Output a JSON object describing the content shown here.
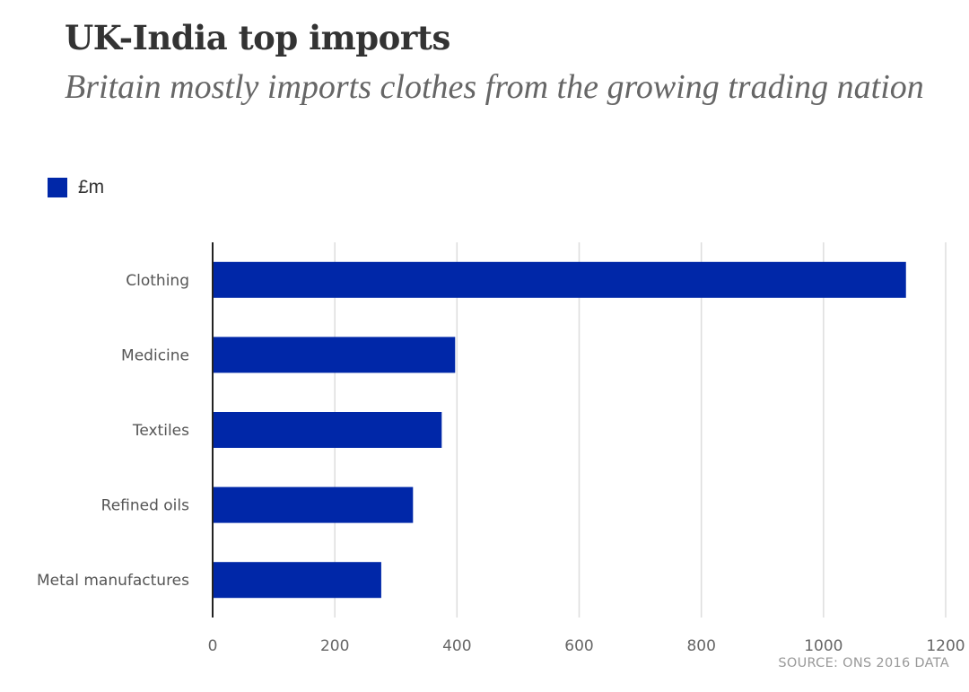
{
  "chart_data": {
    "type": "bar",
    "orientation": "horizontal",
    "title": "UK-India top imports",
    "subtitle": "Britain mostly imports clothes from the growing trading nation",
    "categories": [
      "Clothing",
      "Medicine",
      "Textiles",
      "Refined oils",
      "Metal manufactures"
    ],
    "series": [
      {
        "name": "£m",
        "values": [
          1135,
          397,
          375,
          328,
          276
        ]
      }
    ],
    "xlim": [
      0,
      1200
    ],
    "xticks": [
      0,
      200,
      400,
      600,
      800,
      1000,
      1200
    ],
    "xlabel": "",
    "ylabel": "",
    "grid": true,
    "legend_position": "top-left",
    "bar_color": "#0027a8",
    "source": "SOURCE: ONS 2016 DATA"
  }
}
